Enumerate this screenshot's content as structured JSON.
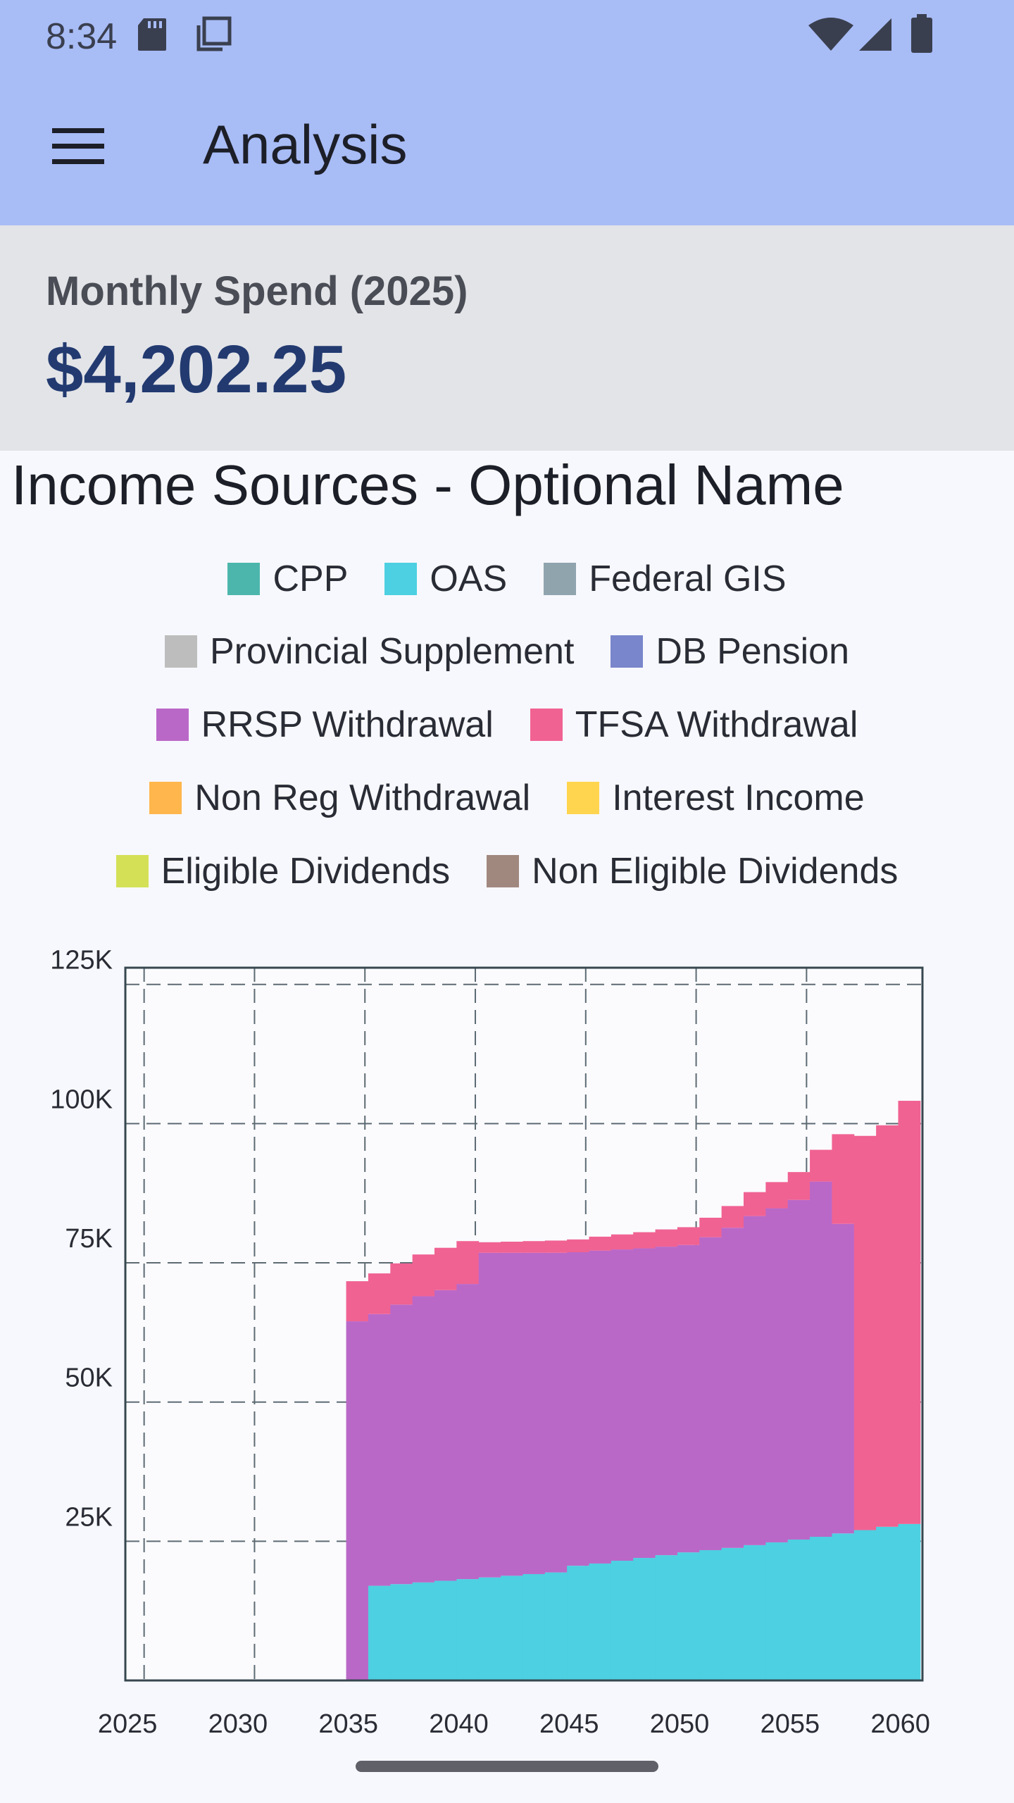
{
  "status_bar": {
    "time": "8:34"
  },
  "app_bar": {
    "title": "Analysis",
    "menu_icon": "hamburger-menu-icon"
  },
  "summary": {
    "label": "Monthly Spend (2025)",
    "value": "$4,202.25"
  },
  "chart_title": "Income Sources - Optional Name",
  "legend": {
    "rows": [
      [
        {
          "label": "CPP",
          "color": "#4db6ac"
        },
        {
          "label": "OAS",
          "color": "#4dd0e1"
        },
        {
          "label": "Federal GIS",
          "color": "#90a4ae"
        }
      ],
      [
        {
          "label": "Provincial Supplement",
          "color": "#bdbdbd"
        },
        {
          "label": "DB Pension",
          "color": "#7986cb"
        }
      ],
      [
        {
          "label": "RRSP Withdrawal",
          "color": "#ba68c8"
        },
        {
          "label": "TFSA Withdrawal",
          "color": "#f06292"
        }
      ],
      [
        {
          "label": "Non Reg Withdrawal",
          "color": "#ffb74d"
        },
        {
          "label": "Interest Income",
          "color": "#ffd54f"
        }
      ],
      [
        {
          "label": "Eligible Dividends",
          "color": "#d4e157"
        },
        {
          "label": "Non Eligible Dividends",
          "color": "#a1887f"
        }
      ]
    ]
  },
  "chart_data": {
    "type": "area",
    "stacked": true,
    "step": true,
    "title": "Income Sources - Optional Name",
    "xlim": [
      2024.5,
      2060.6
    ],
    "ylim": [
      0,
      128000
    ],
    "x_ticks": [
      2025,
      2030,
      2035,
      2040,
      2045,
      2050,
      2055,
      2060
    ],
    "x_tick_labels": [
      "2025",
      "2030",
      "2035",
      "2040",
      "2045",
      "2050",
      "2055",
      "2060"
    ],
    "y_ticks": [
      25000,
      50000,
      75000,
      100000,
      125000
    ],
    "y_tick_labels": [
      "25K",
      "50K",
      "75K",
      "100K",
      "125K"
    ],
    "x": [
      2025,
      2026,
      2027,
      2028,
      2029,
      2030,
      2031,
      2032,
      2033,
      2034,
      2035,
      2036,
      2037,
      2038,
      2039,
      2040,
      2041,
      2042,
      2043,
      2044,
      2045,
      2046,
      2047,
      2048,
      2049,
      2050,
      2051,
      2052,
      2053,
      2054,
      2055,
      2056,
      2057,
      2058,
      2059,
      2060
    ],
    "series": [
      {
        "name": "OAS",
        "color": "#4dd0e1",
        "values": [
          0,
          0,
          0,
          0,
          0,
          0,
          0,
          0,
          0,
          0,
          0,
          17000,
          17300,
          17600,
          17900,
          18200,
          18500,
          18800,
          19100,
          19400,
          20600,
          21000,
          21500,
          22000,
          22500,
          23000,
          23400,
          23800,
          24300,
          24800,
          25300,
          25800,
          26400,
          27000,
          27600,
          28100
        ]
      },
      {
        "name": "RRSP Withdrawal",
        "color": "#ba68c8",
        "values": [
          0,
          0,
          0,
          0,
          0,
          0,
          0,
          0,
          0,
          0,
          64500,
          48800,
          50200,
          51400,
          52200,
          53000,
          58300,
          58000,
          57700,
          57400,
          56300,
          56200,
          55900,
          55600,
          55400,
          55200,
          56200,
          57500,
          59100,
          60000,
          61000,
          63800,
          55600,
          0,
          0,
          0
        ]
      },
      {
        "name": "TFSA Withdrawal",
        "color": "#f06292",
        "values": [
          0,
          0,
          0,
          0,
          0,
          0,
          0,
          0,
          0,
          0,
          7200,
          7300,
          7400,
          7500,
          7600,
          7700,
          1900,
          2000,
          2100,
          2200,
          2300,
          2500,
          2700,
          2900,
          3100,
          3200,
          3500,
          3900,
          4300,
          4700,
          5000,
          5700,
          16100,
          70800,
          72100,
          76000
        ]
      }
    ]
  }
}
